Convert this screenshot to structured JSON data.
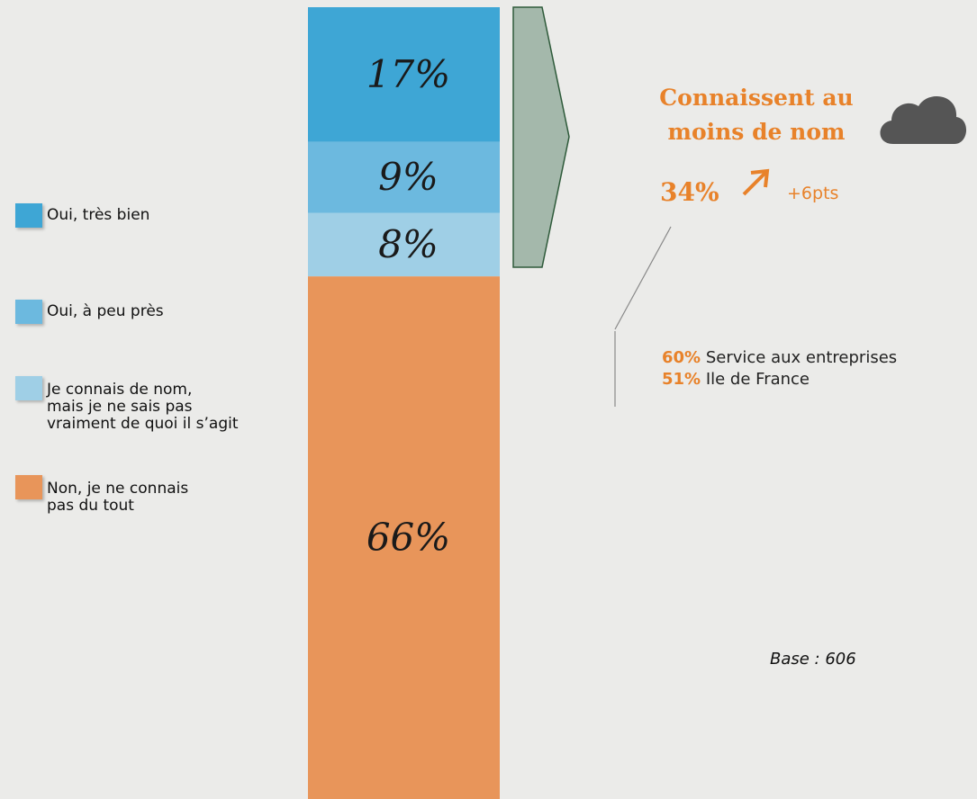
{
  "chart_data": {
    "type": "stacked_bar",
    "ylim": [
      0,
      100
    ],
    "series": [
      {
        "name": "Oui, très bien",
        "color": "#3ea6d5",
        "values": [
          17
        ],
        "value_labels": [
          "17%"
        ]
      },
      {
        "name": "Oui, à peu près",
        "color": "#6cb9df",
        "values": [
          9
        ],
        "value_labels": [
          "9%"
        ]
      },
      {
        "name": "Je connais de nom,\nmais je ne sais pas\nvraiment de quoi il s’agit",
        "color": "#9fcfe6",
        "values": [
          8
        ],
        "value_labels": [
          "8%"
        ]
      },
      {
        "name": "Non, je ne connais\npas du tout",
        "color": "#e8955a",
        "values": [
          66
        ],
        "value_labels": [
          "66%"
        ]
      }
    ],
    "annotations": {
      "heading": "Connaissent au\nmoins de nom",
      "total": "34%",
      "change": "+6pts",
      "details": [
        {
          "value": "60%",
          "label": "Service aux entreprises"
        },
        {
          "value": "51%",
          "label": "Ile de France"
        }
      ],
      "base": "Base : 606"
    }
  }
}
